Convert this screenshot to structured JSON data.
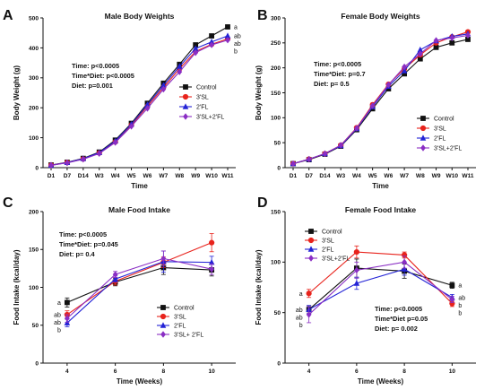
{
  "colors": {
    "Control": "#111111",
    "3'SL": "#e8231c",
    "2'FL": "#2323d6",
    "3'SL+2'FL": "#8a2ec4"
  },
  "chart_data": [
    {
      "id": "A",
      "letter": "A",
      "type": "line",
      "title": "Male Body Weights",
      "xlabel": "Time",
      "ylabel": "Body Weight (g)",
      "categories": [
        "D1",
        "D7",
        "D14",
        "W3",
        "W4",
        "W5",
        "W6",
        "W7",
        "W8",
        "W9",
        "W10",
        "W11"
      ],
      "ylim": [
        0,
        500
      ],
      "yticks": [
        0,
        100,
        200,
        300,
        400,
        500
      ],
      "stats": [
        "Time: p<0.0005",
        "Time*Diet: p<0.0005",
        "Diet: p=0.001"
      ],
      "legend": [
        "Control",
        "3'SL",
        "2'FL",
        "3'SL+2'FL"
      ],
      "legend_position": "right",
      "series": [
        {
          "name": "Control",
          "marker": "square",
          "values": [
            9,
            18,
            31,
            52,
            92,
            148,
            215,
            282,
            345,
            410,
            440,
            470
          ]
        },
        {
          "name": "3'SL",
          "marker": "circle",
          "values": [
            8,
            17,
            29,
            49,
            86,
            142,
            205,
            268,
            330,
            388,
            412,
            430
          ]
        },
        {
          "name": "2'FL",
          "marker": "triangle",
          "values": [
            8,
            17,
            30,
            50,
            89,
            145,
            210,
            275,
            338,
            398,
            420,
            440
          ]
        },
        {
          "name": "3'SL+2'FL",
          "marker": "diamond",
          "values": [
            8,
            16,
            28,
            47,
            84,
            138,
            198,
            262,
            320,
            384,
            410,
            426
          ]
        }
      ],
      "end_labels": [
        "a",
        "ab",
        "ab",
        "b"
      ]
    },
    {
      "id": "B",
      "letter": "B",
      "type": "line",
      "title": "Female Body Weights",
      "xlabel": "Time",
      "ylabel": "Body Weight (g)",
      "categories": [
        "D1",
        "D7",
        "D14",
        "W3",
        "W4",
        "W5",
        "W6",
        "W7",
        "W8",
        "W9",
        "W10",
        "W11"
      ],
      "ylim": [
        0,
        300
      ],
      "yticks": [
        0,
        50,
        100,
        150,
        200,
        250,
        300
      ],
      "stats": [
        "Time: p<0.0005",
        "Time*Diet: p=0.7",
        "Diet: p= 0.5"
      ],
      "legend": [
        "Control",
        "3'SL",
        "2'FL",
        "3'SL+2'FL"
      ],
      "legend_position": "bottom-right",
      "series": [
        {
          "name": "Control",
          "marker": "square",
          "values": [
            8,
            16,
            27,
            43,
            76,
            118,
            158,
            188,
            218,
            241,
            250,
            257
          ]
        },
        {
          "name": "3'SL",
          "marker": "circle",
          "values": [
            8,
            17,
            28,
            45,
            80,
            126,
            167,
            198,
            226,
            250,
            262,
            272
          ]
        },
        {
          "name": "2'FL",
          "marker": "triangle",
          "values": [
            8,
            17,
            28,
            44,
            78,
            122,
            163,
            194,
            236,
            254,
            263,
            268
          ]
        },
        {
          "name": "3'SL+2'FL",
          "marker": "diamond",
          "values": [
            8,
            17,
            28,
            45,
            79,
            124,
            166,
            202,
            228,
            255,
            260,
            265
          ]
        }
      ]
    },
    {
      "id": "C",
      "letter": "C",
      "type": "line",
      "title": "Male Food Intake",
      "xlabel": "Time (Weeks)",
      "ylabel": "Food Intake (kcal/day)",
      "x": [
        4,
        6,
        8,
        10
      ],
      "xlim": [
        3,
        11
      ],
      "ylim": [
        0,
        200
      ],
      "yticks": [
        0,
        50,
        100,
        150,
        200
      ],
      "stats": [
        "Time: p<0.0005",
        "Time*Diet: p=0.045",
        "Diet: p= 0.4"
      ],
      "legend": [
        "Control",
        "3'SL",
        "2'FL",
        "3'SL+ 2'FL"
      ],
      "legend_position": "bottom-right",
      "series": [
        {
          "name": "Control",
          "marker": "square",
          "values": [
            80,
            107,
            126,
            123
          ],
          "errors": [
            6,
            5,
            9,
            8
          ]
        },
        {
          "name": "3'SL",
          "marker": "circle",
          "values": [
            64,
            108,
            133,
            159
          ],
          "errors": [
            5,
            5,
            7,
            12
          ]
        },
        {
          "name": "2'FL",
          "marker": "triangle",
          "values": [
            53,
            111,
            134,
            133
          ],
          "errors": [
            5,
            4,
            14,
            8
          ]
        },
        {
          "name": "3'SL+ 2'FL",
          "marker": "diamond",
          "values": [
            59,
            117,
            138,
            124
          ],
          "errors": [
            5,
            4,
            10,
            7
          ]
        }
      ],
      "start_labels": [
        "a",
        "ab",
        "ab",
        "b"
      ]
    },
    {
      "id": "D",
      "letter": "D",
      "type": "line",
      "title": "Female Food Intake",
      "xlabel": "Time (Weeks)",
      "ylabel": "Food Intake (kcal/day)",
      "x": [
        4,
        6,
        8,
        10
      ],
      "xlim": [
        3,
        11
      ],
      "ylim": [
        0,
        150
      ],
      "yticks": [
        0,
        50,
        100,
        150
      ],
      "stats": [
        "Time: p<0.0005",
        "Time*Diet p=0.05",
        "Diet: p= 0.002"
      ],
      "legend": [
        "Control",
        "3'SL",
        "2'FL",
        "3'SL+2'FL"
      ],
      "legend_position": "top-left",
      "series": [
        {
          "name": "Control",
          "marker": "square",
          "values": [
            53,
            94,
            91,
            77
          ],
          "errors": [
            4,
            9,
            7,
            3
          ]
        },
        {
          "name": "3'SL",
          "marker": "circle",
          "values": [
            69,
            110,
            107,
            59
          ],
          "errors": [
            4,
            6,
            3,
            3
          ]
        },
        {
          "name": "2'FL",
          "marker": "triangle",
          "values": [
            53,
            79,
            93,
            65
          ],
          "errors": [
            4,
            6,
            6,
            3
          ]
        },
        {
          "name": "3'SL+2'FL",
          "marker": "diamond",
          "values": [
            48,
            92,
            100,
            63
          ],
          "errors": [
            8,
            8,
            6,
            3
          ]
        }
      ],
      "start_labels": [
        "a",
        "ab",
        "ab",
        "b"
      ],
      "end_labels": [
        "a",
        "ab",
        "b",
        "b"
      ]
    }
  ]
}
